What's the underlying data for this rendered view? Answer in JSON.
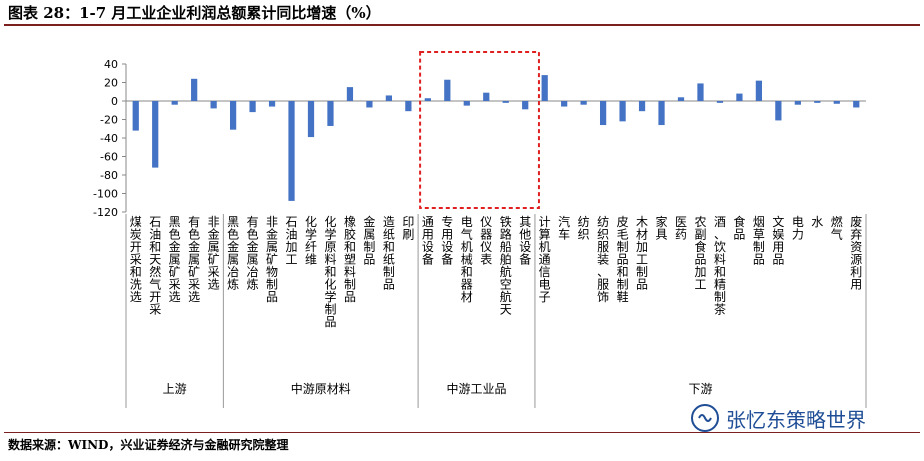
{
  "title": "图表 28：1-7 月工业企业利润总额累计同比增速（%）",
  "source": "数据来源：WIND，兴业证券经济与金融研究院整理",
  "watermark": "张忆东策略世界",
  "colors": {
    "bar": "#4472c4",
    "highlight_box": "#e02020",
    "rule": "#7b1f1f"
  },
  "chart_data": {
    "type": "bar",
    "title": "1-7 月工业企业利润总额累计同比增速（%）",
    "ylim": [
      -120,
      40
    ],
    "yticks": [
      -120,
      -100,
      -80,
      -60,
      -40,
      -20,
      0,
      20,
      40
    ],
    "categories": [
      "煤炭开采和洗选",
      "石油和天然气开采",
      "黑色金属矿采选",
      "有色金属矿采选",
      "非金属矿采选",
      "黑色金属冶炼",
      "有色金属冶炼",
      "非金属矿物制品",
      "石油加工",
      "化学纤维",
      "化学原料和化学制品",
      "橡胶和塑料制品",
      "金属制品",
      "造纸和纸制品",
      "印刷",
      "通用设备",
      "专用设备",
      "电气机械和器材",
      "仪器仪表",
      "铁路船舶航空航天",
      "其他设备",
      "计算机通信电子",
      "汽车",
      "纺织",
      "纺织服装、服饰",
      "皮毛制品和制鞋",
      "木材加工制品",
      "家具",
      "医药",
      "农副食品加工",
      "酒、饮料和精制茶",
      "食品",
      "烟草制品",
      "文娱用品",
      "电力",
      "水",
      "燃气",
      "废弃资源利用"
    ],
    "values": [
      -32,
      -72,
      -4,
      24,
      -8,
      -31,
      -12,
      -6,
      -108,
      -39,
      -27,
      15,
      -7,
      6,
      -11,
      3,
      23,
      -5,
      9,
      -2,
      -9,
      28,
      -6,
      -4,
      -26,
      -22,
      -11,
      -26,
      4,
      19,
      -2,
      8,
      22,
      -21,
      -4,
      -2,
      -3,
      -7
    ],
    "groups": [
      {
        "name": "上游",
        "count": 5
      },
      {
        "name": "中游原材料",
        "count": 10
      },
      {
        "name": "中游工业品",
        "count": 6
      },
      {
        "name": "下游",
        "count": 17
      }
    ],
    "highlight": {
      "group": "中游工业品",
      "style": "red dashed box"
    }
  }
}
